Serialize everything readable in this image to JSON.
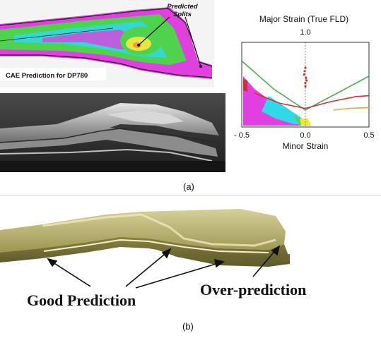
{
  "panel_a": {
    "cae_title": "CAE Prediction for DP780",
    "splits_label_line1": "Predicted",
    "splits_label_line2": "Splits",
    "caption": "(a)"
  },
  "fld_chart": {
    "title": "Major Strain (True FLD)",
    "y_top_tick": "1.0",
    "x_tick_left": "- 0.5",
    "x_tick_mid": "0.0",
    "x_tick_right": "0.5",
    "xlabel": "Minor Strain"
  },
  "chart_data": {
    "type": "scatter",
    "title": "Major Strain (True FLD)",
    "xlabel": "Minor Strain",
    "ylabel": "",
    "xlim": [
      -0.5,
      0.5
    ],
    "ylim": [
      0,
      1.0
    ],
    "x_ticks": [
      "- 0.5",
      "0.0",
      "0.5"
    ],
    "y_ticks": [
      "1.0"
    ],
    "series": [
      {
        "color": "#4caf50",
        "style": "line",
        "points": [
          [
            -0.5,
            0.78
          ],
          [
            -0.25,
            0.45
          ],
          [
            0.0,
            0.2
          ],
          [
            0.25,
            0.4
          ],
          [
            0.5,
            0.6
          ]
        ]
      },
      {
        "color": "#d03030",
        "style": "line",
        "points": [
          [
            -0.4,
            0.4
          ],
          [
            -0.2,
            0.28
          ],
          [
            0.0,
            0.22
          ],
          [
            0.2,
            0.3
          ],
          [
            0.4,
            0.36
          ],
          [
            0.5,
            0.37
          ]
        ]
      },
      {
        "color": "#f0a040",
        "style": "line",
        "points": [
          [
            0.22,
            0.2
          ],
          [
            0.35,
            0.22
          ],
          [
            0.5,
            0.23
          ]
        ]
      },
      {
        "color": "#d03030",
        "style": "points",
        "points": [
          [
            0.0,
            0.48
          ],
          [
            0.01,
            0.55
          ],
          [
            -0.01,
            0.62
          ],
          [
            0.0,
            0.7
          ],
          [
            0.005,
            0.58
          ],
          [
            -0.005,
            0.66
          ],
          [
            0.0,
            0.52
          ]
        ]
      }
    ]
  },
  "panel_b": {
    "label_good": "Good Prediction",
    "label_over": "Over-prediction",
    "caption": "(b)"
  },
  "colors": {
    "part_olive": "#9c9550",
    "part_light": "#d6d09a",
    "part_dark": "#5f5a2c",
    "fld_green": "#4caf50",
    "fld_red": "#d03030",
    "cae_magenta": "#e040e0",
    "cae_green": "#4fd34f",
    "cae_cyan": "#30d8e8"
  }
}
